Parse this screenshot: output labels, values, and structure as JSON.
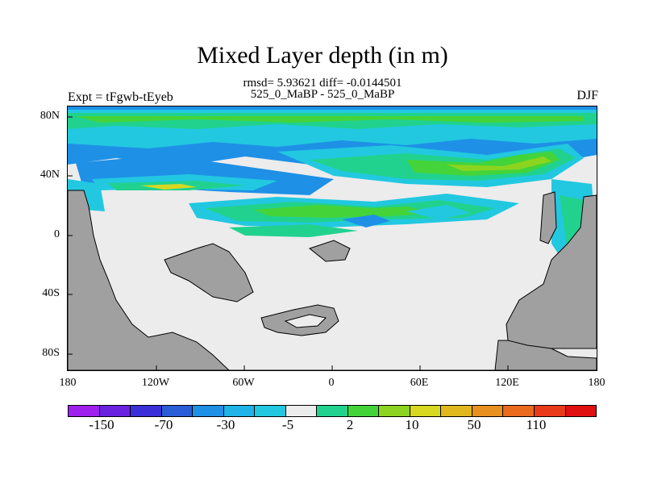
{
  "title": "Mixed Layer depth (in m)",
  "stats_line": "rmsd= 5.93621 diff= -0.0144501",
  "case_line": "525_0_MaBP - 525_0_MaBP",
  "left_label": "Expt = tFgwb-tEyeb",
  "right_label": "DJF",
  "lat_ticks": [
    "80N",
    "40N",
    "0",
    "40S",
    "80S"
  ],
  "lon_ticks": [
    "180",
    "120W",
    "60W",
    "0",
    "60E",
    "120E",
    "180"
  ],
  "colorbar": {
    "colors": [
      "#a020f0",
      "#6a22e0",
      "#3a2fd8",
      "#2a5cd8",
      "#1e90e6",
      "#1fb3e8",
      "#22c8e0",
      "#ececec",
      "#21d28f",
      "#44d43a",
      "#8cd41f",
      "#d8d820",
      "#e0b81e",
      "#e89020",
      "#ea6a1e",
      "#e83a1a",
      "#e01010"
    ],
    "labels": [
      "-150",
      "-70",
      "-30",
      "-5",
      "2",
      "10",
      "50",
      "110"
    ]
  },
  "map_colors": {
    "land": "#a0a0a0",
    "ocean": "#ececec",
    "blue": "#1e90e6",
    "cyan": "#22c8e0",
    "teal": "#21d28f",
    "green": "#44d43a",
    "yellowgreen": "#8cd41f",
    "yellow": "#d8d820",
    "orange": "#e0b81e"
  }
}
